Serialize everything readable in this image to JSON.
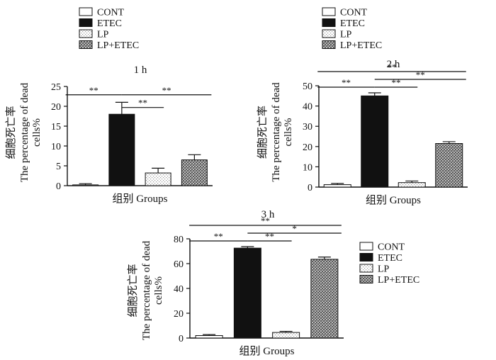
{
  "legend_entries": [
    "CONT",
    "ETEC",
    "LP",
    "LP+ETEC"
  ],
  "colors": {
    "ink": "#111111",
    "grid": "#111111",
    "lp_dot": "#9a9a9a",
    "mix_dark": "#5a5a5a",
    "mix_light": "#bcbcbc"
  },
  "chart_data": [
    {
      "type": "bar",
      "title": "1 h",
      "xlabel": "组别 Groups",
      "ylabel_cn": "细胞死亡率",
      "ylabel_en_1": "The percentage of dead",
      "ylabel_en_2": "cells%",
      "categories": [
        "CONT",
        "ETEC",
        "LP",
        "LP+ETEC"
      ],
      "values": [
        0.2,
        18,
        3.2,
        6.5
      ],
      "errors": [
        0.3,
        3,
        1.2,
        1.3
      ],
      "ylim": [
        0,
        25
      ],
      "yticks": [
        0,
        5,
        10,
        15,
        20,
        25
      ],
      "significance": [
        {
          "from": 0,
          "to": 1,
          "label": "**",
          "level": 1
        },
        {
          "from": 1,
          "to": 2,
          "label": "**",
          "level": 0
        },
        {
          "from": 1,
          "to": 3,
          "label": "**",
          "level": 1
        }
      ],
      "legend": "top-left"
    },
    {
      "type": "bar",
      "title": "2 h",
      "xlabel": "组别 Groups",
      "ylabel_cn": "细胞死亡率",
      "ylabel_en_1": "The percentage of dead",
      "ylabel_en_2": "cells%",
      "categories": [
        "CONT",
        "ETEC",
        "LP",
        "LP+ETEC"
      ],
      "values": [
        1.2,
        45,
        2.2,
        21.5
      ],
      "errors": [
        0.6,
        1.5,
        0.8,
        0.9
      ],
      "ylim": [
        0,
        50
      ],
      "yticks": [
        0,
        10,
        20,
        30,
        40,
        50
      ],
      "significance": [
        {
          "from": 0,
          "to": 1,
          "label": "**",
          "level": 1
        },
        {
          "from": 1,
          "to": 2,
          "label": "**",
          "level": 1
        },
        {
          "from": 1,
          "to": 3,
          "label": "**",
          "level": 2
        },
        {
          "from": 0,
          "to": 3,
          "label": "**",
          "level": 3
        }
      ],
      "legend": "top-left"
    },
    {
      "type": "bar",
      "title": "3 h",
      "xlabel": "组别 Groups",
      "ylabel_cn": "细胞死亡率",
      "ylabel_en_1": "The percentage of dead",
      "ylabel_en_2": "cells%",
      "categories": [
        "CONT",
        "ETEC",
        "LP",
        "LP+ETEC"
      ],
      "values": [
        2,
        72.5,
        4.5,
        63.5
      ],
      "errors": [
        0.8,
        1.2,
        0.9,
        1.8
      ],
      "ylim": [
        0,
        80
      ],
      "yticks": [
        0,
        20,
        40,
        60,
        80
      ],
      "significance": [
        {
          "from": 0,
          "to": 1,
          "label": "**",
          "level": 1
        },
        {
          "from": 1,
          "to": 2,
          "label": "**",
          "level": 1
        },
        {
          "from": 1,
          "to": 3,
          "label": "*",
          "level": 2
        },
        {
          "from": 0,
          "to": 3,
          "label": "**",
          "level": 3
        }
      ],
      "legend": "right"
    }
  ]
}
